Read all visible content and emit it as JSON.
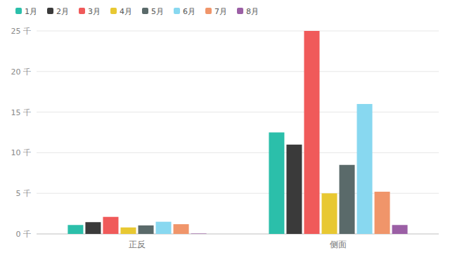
{
  "chart_data": {
    "type": "bar",
    "categories": [
      "正反",
      "侧面"
    ],
    "series": [
      {
        "name": "1月",
        "color": "#2bbfaa",
        "values": [
          1100,
          12500
        ]
      },
      {
        "name": "2月",
        "color": "#3a3a3a",
        "values": [
          1450,
          11000
        ]
      },
      {
        "name": "3月",
        "color": "#f05a5a",
        "values": [
          2100,
          25000
        ]
      },
      {
        "name": "4月",
        "color": "#e8c832",
        "values": [
          800,
          5000
        ]
      },
      {
        "name": "5月",
        "color": "#5a6a6a",
        "values": [
          1050,
          8500
        ]
      },
      {
        "name": "6月",
        "color": "#88d8f0",
        "values": [
          1500,
          16000
        ]
      },
      {
        "name": "7月",
        "color": "#f0956a",
        "values": [
          1200,
          5200
        ]
      },
      {
        "name": "8月",
        "color": "#9b5fa5",
        "values": [
          50,
          1100
        ]
      }
    ],
    "ylim": [
      0,
      25000
    ],
    "yticks": [
      {
        "value": 0,
        "label": "0 千"
      },
      {
        "value": 5000,
        "label": "5 千"
      },
      {
        "value": 10000,
        "label": "10 千"
      },
      {
        "value": 15000,
        "label": "15 千"
      },
      {
        "value": 20000,
        "label": "20 千"
      },
      {
        "value": 25000,
        "label": "25 千"
      }
    ],
    "grid": true,
    "legend": "upper left"
  }
}
